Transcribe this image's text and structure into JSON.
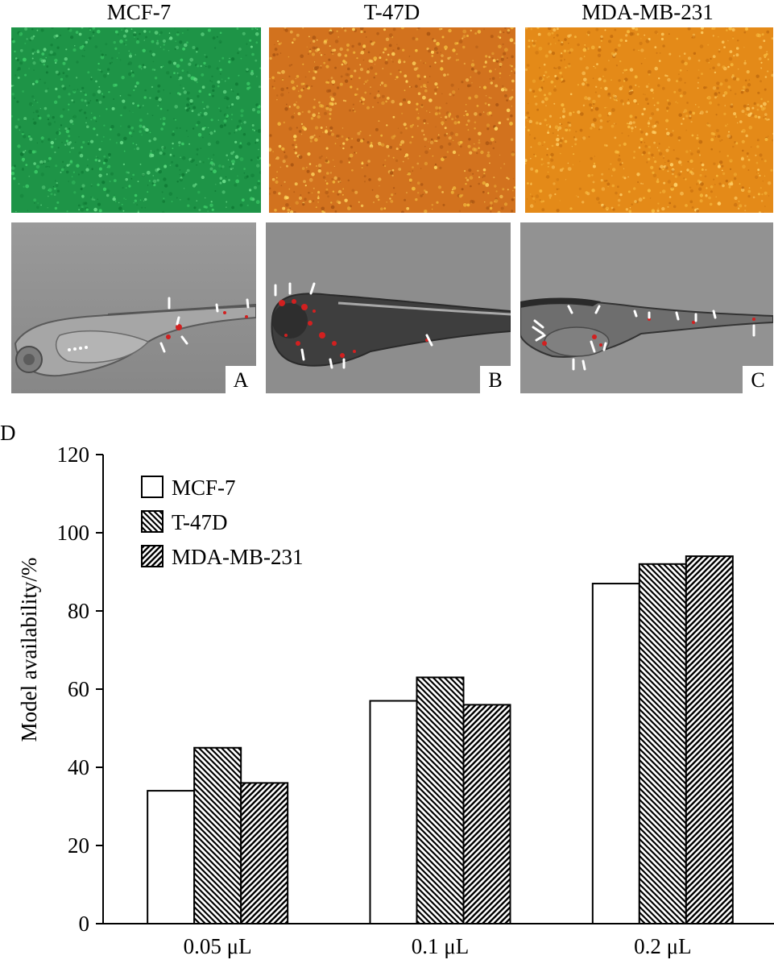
{
  "columns": [
    {
      "title": "MCF-7"
    },
    {
      "title": "T-47D"
    },
    {
      "title": "MDA-MB-231"
    }
  ],
  "panels": [
    {
      "letter": "A"
    },
    {
      "letter": "B"
    },
    {
      "letter": "C"
    }
  ],
  "colors": {
    "mcf7_fluorescence": "#1e9447",
    "t47d_fluorescence": "#d2721e",
    "mdamb231_fluorescence": "#e48a18",
    "zebrafish_background": "#8e8e8e",
    "tumor_marker": "#d22020",
    "arrow": "#ffffff"
  },
  "chart_data": {
    "type": "bar",
    "panel_label": "D",
    "categories": [
      "0.05 μL",
      "0.1 μL",
      "0.2 μL"
    ],
    "series": [
      {
        "name": "MCF-7",
        "pattern": "open",
        "values": [
          34,
          57,
          87
        ]
      },
      {
        "name": "T-47D",
        "pattern": "backslash-hatch",
        "values": [
          45,
          63,
          92
        ]
      },
      {
        "name": "MDA-MB-231",
        "pattern": "slash-hatch",
        "values": [
          36,
          56,
          94
        ]
      }
    ],
    "ylabel": "Model availability/%",
    "xlabel": "",
    "ylim": [
      0,
      120
    ],
    "yticks": [
      0,
      20,
      40,
      60,
      80,
      100,
      120
    ],
    "grid": false,
    "legend": "top-left"
  }
}
